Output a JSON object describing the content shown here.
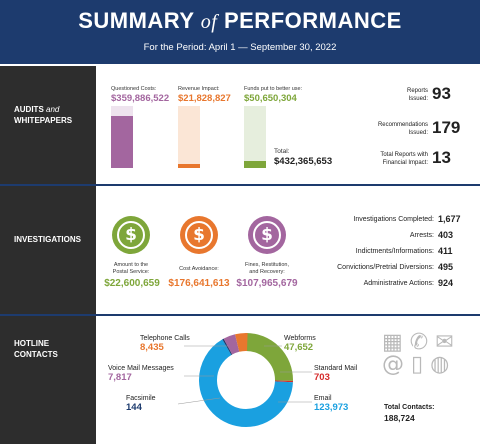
{
  "header": {
    "title_1": "SUMMARY",
    "title_of": "of",
    "title_2": "PERFORMANCE",
    "period": "For the Period: April 1 — September 30, 2022"
  },
  "audits": {
    "section_label_1": "AUDITS",
    "section_label_and": "and",
    "section_label_2": "WHITEPAPERS",
    "questioned_costs": {
      "label": "Questioned Costs:",
      "value": "$359,886,522",
      "amount": 359886522,
      "color": "#a3669f"
    },
    "revenue_impact": {
      "label": "Revenue Impact:",
      "value": "$21,828,827",
      "amount": 21828827,
      "color": "#e8772e"
    },
    "funds_better_use": {
      "label": "Funds put to better use:",
      "value": "$50,650,304",
      "amount": 50650304,
      "color": "#7ea63a"
    },
    "total_label": "Total:",
    "total_value": "$432,365,653",
    "total_amount": 432365653,
    "stats": [
      {
        "label_1": "Reports",
        "label_2": "Issued:",
        "value": "93"
      },
      {
        "label_1": "Recommendations",
        "label_2": "Issued:",
        "value": "179"
      },
      {
        "label_1": "Total Reports with",
        "label_2": "Financial Impact:",
        "value": "13"
      }
    ]
  },
  "investigations": {
    "section_label": "INVESTIGATIONS",
    "icons": [
      {
        "label_1": "Amount to the",
        "label_2": "Postal Service:",
        "label_3": "",
        "value": "$22,600,659",
        "color": "#7ea63a",
        "icon": "dollar-cycle-icon"
      },
      {
        "label_1": "Cost Avoidance:",
        "label_2": "",
        "label_3": "",
        "value": "$176,641,613",
        "color": "#e8772e",
        "icon": "dollar-down-icon"
      },
      {
        "label_1": "Fines, Restitution,",
        "label_2": "and Recovery:",
        "label_3": "",
        "value": "$107,965,679",
        "color": "#a3669f",
        "icon": "dollar-icon"
      }
    ],
    "rows": [
      {
        "label": "Investigations Completed:",
        "value": "1,677"
      },
      {
        "label": "Arrests:",
        "value": "403"
      },
      {
        "label": "Indictments/Informations:",
        "value": "411"
      },
      {
        "label": "Convictions/Pretrial Diversions:",
        "value": "495"
      },
      {
        "label": "Administrative Actions:",
        "value": "924"
      }
    ]
  },
  "hotline": {
    "section_label_1": "HOTLINE",
    "section_label_2": "CONTACTS",
    "segments": [
      {
        "label": "Email",
        "value": "123,973",
        "amount": 123973,
        "color": "#1aa0e0"
      },
      {
        "label": "Facsimile",
        "value": "144",
        "amount": 144,
        "color": "#1d3b6e"
      },
      {
        "label": "Voice Mail Messages",
        "value": "7,817",
        "amount": 7817,
        "color": "#a3669f"
      },
      {
        "label": "Telephone Calls",
        "value": "8,435",
        "amount": 8435,
        "color": "#e8772e"
      },
      {
        "label": "Webforms",
        "value": "47,652",
        "amount": 47652,
        "color": "#7ea63a"
      },
      {
        "label": "Standard Mail",
        "value": "703",
        "amount": 703,
        "color": "#d62b2b"
      }
    ],
    "total_label": "Total Contacts:",
    "total_value": "188,724"
  }
}
